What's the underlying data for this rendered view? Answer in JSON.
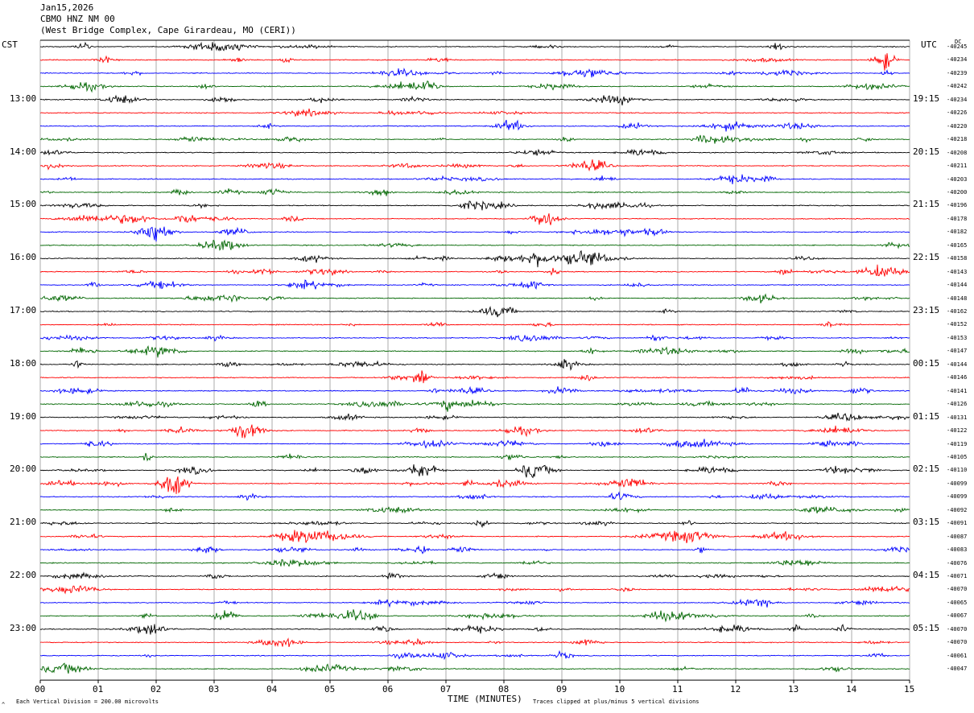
{
  "header": {
    "date": "Jan15,2026",
    "station": "CBMO HNZ NM 00",
    "location": "(West Bridge Complex, Cape Girardeau, MO (CERI))"
  },
  "left_axis_label": "CST",
  "right_axis_label": "UTC",
  "dc_label": "DC",
  "footer": {
    "xlabel": "TIME (MINUTES)",
    "scale_note": "Each Vertical Division = 200.00 microvolts",
    "clip_note": "Traces clipped at plus/minus 5 vertical divisions",
    "corner_mark": "^"
  },
  "colors": {
    "trace_cycle": [
      "#000000",
      "#ff0000",
      "#0000ff",
      "#006600"
    ],
    "grid": "#000000"
  },
  "chart_data": {
    "type": "line",
    "title": "",
    "xlabel": "TIME (MINUTES)",
    "xlim": [
      0,
      15
    ],
    "x_ticks": [
      "00",
      "01",
      "02",
      "03",
      "04",
      "05",
      "06",
      "07",
      "08",
      "09",
      "10",
      "11",
      "12",
      "13",
      "14",
      "15"
    ],
    "trace_minutes": 15,
    "cst_hour_labels": [
      "13:00",
      "14:00",
      "15:00",
      "16:00",
      "17:00",
      "18:00",
      "19:00",
      "20:00",
      "21:00",
      "22:00",
      "23:00"
    ],
    "utc_hour_labels": [
      "19:15",
      "20:15",
      "21:15",
      "22:15",
      "23:15",
      "00:15",
      "01:15",
      "02:15",
      "03:15",
      "04:15",
      "05:15"
    ],
    "dc_offsets": [
      "-40245",
      "-40234",
      "-40239",
      "-40242",
      "-40234",
      "-40226",
      "-40220",
      "-40218",
      "-40208",
      "-40211",
      "-40203",
      "-40200",
      "-40196",
      "-40178",
      "-40182",
      "-40165",
      "-40158",
      "-40143",
      "-40144",
      "-40148",
      "-40162",
      "-40152",
      "-40153",
      "-40147",
      "-40144",
      "-40146",
      "-40141",
      "-40126",
      "-40131",
      "-40122",
      "-40119",
      "-40105",
      "-40110",
      "-40099",
      "-40099",
      "-40092",
      "-40091",
      "-40087",
      "-40083",
      "-40076",
      "-40071",
      "-40070",
      "-40065",
      "-40067",
      "-40070",
      "-40070",
      "-40061",
      "-40047"
    ]
  }
}
